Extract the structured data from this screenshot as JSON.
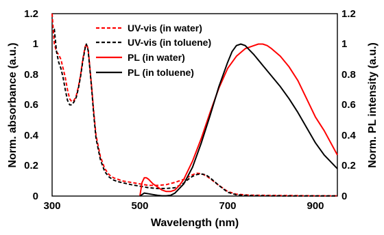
{
  "chart_data": {
    "type": "line",
    "xlabel": "Wavelength (nm)",
    "ylabel_left": "Norm. absorbance (a.u.)",
    "ylabel_right": "Norm. PL intensity (a.u.)",
    "xlim": [
      300,
      950
    ],
    "ylim": [
      0,
      1.2
    ],
    "x_ticks": [
      "300",
      "500",
      "700",
      "900"
    ],
    "y_ticks": [
      "0",
      "0.2",
      "0.4",
      "0.6",
      "0.8",
      "1",
      "1.2"
    ],
    "grid": false,
    "legend_position": "top-center",
    "series": [
      {
        "name": "UV-vis (in water)",
        "color": "#ff0000",
        "dash": "dashed",
        "x": [
          300,
          305,
          310,
          315,
          320,
          325,
          330,
          335,
          340,
          345,
          350,
          355,
          360,
          365,
          370,
          375,
          378,
          382,
          386,
          390,
          395,
          400,
          410,
          420,
          430,
          440,
          450,
          460,
          480,
          500,
          520,
          540,
          560,
          580,
          600,
          610,
          620,
          630,
          640,
          650,
          660,
          680,
          700,
          720,
          750,
          800,
          850,
          900,
          950
        ],
        "y": [
          1.2,
          1.0,
          0.95,
          0.93,
          0.9,
          0.84,
          0.78,
          0.7,
          0.64,
          0.62,
          0.63,
          0.66,
          0.72,
          0.8,
          0.9,
          0.98,
          1.0,
          0.97,
          0.85,
          0.72,
          0.55,
          0.4,
          0.26,
          0.18,
          0.14,
          0.12,
          0.11,
          0.1,
          0.09,
          0.08,
          0.07,
          0.07,
          0.075,
          0.09,
          0.11,
          0.125,
          0.14,
          0.15,
          0.148,
          0.135,
          0.115,
          0.07,
          0.03,
          0.012,
          0.006,
          0.004,
          0.003,
          0.002,
          0.002
        ]
      },
      {
        "name": "UV-vis (in toluene)",
        "color": "#000000",
        "dash": "dashed",
        "x": [
          305,
          310,
          315,
          320,
          325,
          330,
          335,
          340,
          345,
          350,
          355,
          360,
          365,
          370,
          375,
          378,
          382,
          386,
          390,
          395,
          400,
          410,
          420,
          430,
          440,
          450,
          460,
          480,
          500,
          520,
          540,
          560,
          580,
          600,
          610,
          620,
          630,
          640,
          650,
          660,
          680,
          700,
          720,
          750,
          800,
          850,
          900,
          950
        ],
        "y": [
          1.1,
          0.95,
          0.88,
          0.84,
          0.78,
          0.7,
          0.63,
          0.6,
          0.6,
          0.62,
          0.65,
          0.71,
          0.79,
          0.89,
          0.97,
          1.0,
          0.96,
          0.84,
          0.71,
          0.53,
          0.38,
          0.24,
          0.16,
          0.125,
          0.105,
          0.095,
          0.088,
          0.075,
          0.065,
          0.055,
          0.05,
          0.05,
          0.055,
          0.085,
          0.11,
          0.13,
          0.142,
          0.145,
          0.14,
          0.12,
          0.07,
          0.025,
          0.008,
          0.003,
          0.002,
          0.001,
          0.001,
          0.001
        ]
      },
      {
        "name": "PL (in water)",
        "color": "#ff0000",
        "dash": "solid",
        "x": [
          500,
          505,
          510,
          515,
          520,
          525,
          530,
          540,
          550,
          560,
          570,
          580,
          590,
          600,
          620,
          640,
          660,
          680,
          700,
          720,
          740,
          760,
          770,
          780,
          790,
          800,
          820,
          840,
          860,
          880,
          900,
          920,
          950
        ],
        "y": [
          0.0,
          0.09,
          0.12,
          0.12,
          0.11,
          0.095,
          0.08,
          0.06,
          0.04,
          0.03,
          0.03,
          0.04,
          0.07,
          0.11,
          0.23,
          0.38,
          0.55,
          0.71,
          0.84,
          0.92,
          0.97,
          0.99,
          1.0,
          1.0,
          0.99,
          0.97,
          0.92,
          0.85,
          0.76,
          0.64,
          0.52,
          0.43,
          0.27
        ]
      },
      {
        "name": "PL (in toluene)",
        "color": "#000000",
        "dash": "solid",
        "x": [
          500,
          505,
          510,
          520,
          530,
          540,
          550,
          560,
          570,
          580,
          600,
          620,
          640,
          660,
          680,
          700,
          710,
          720,
          730,
          740,
          750,
          760,
          780,
          800,
          820,
          840,
          860,
          880,
          900,
          920,
          950
        ],
        "y": [
          0.0,
          0.01,
          0.02,
          0.015,
          0.01,
          0.005,
          0.002,
          0.002,
          0.005,
          0.02,
          0.08,
          0.19,
          0.35,
          0.53,
          0.72,
          0.88,
          0.95,
          0.99,
          1.0,
          0.99,
          0.96,
          0.93,
          0.86,
          0.79,
          0.72,
          0.64,
          0.55,
          0.45,
          0.35,
          0.27,
          0.18
        ]
      }
    ]
  }
}
